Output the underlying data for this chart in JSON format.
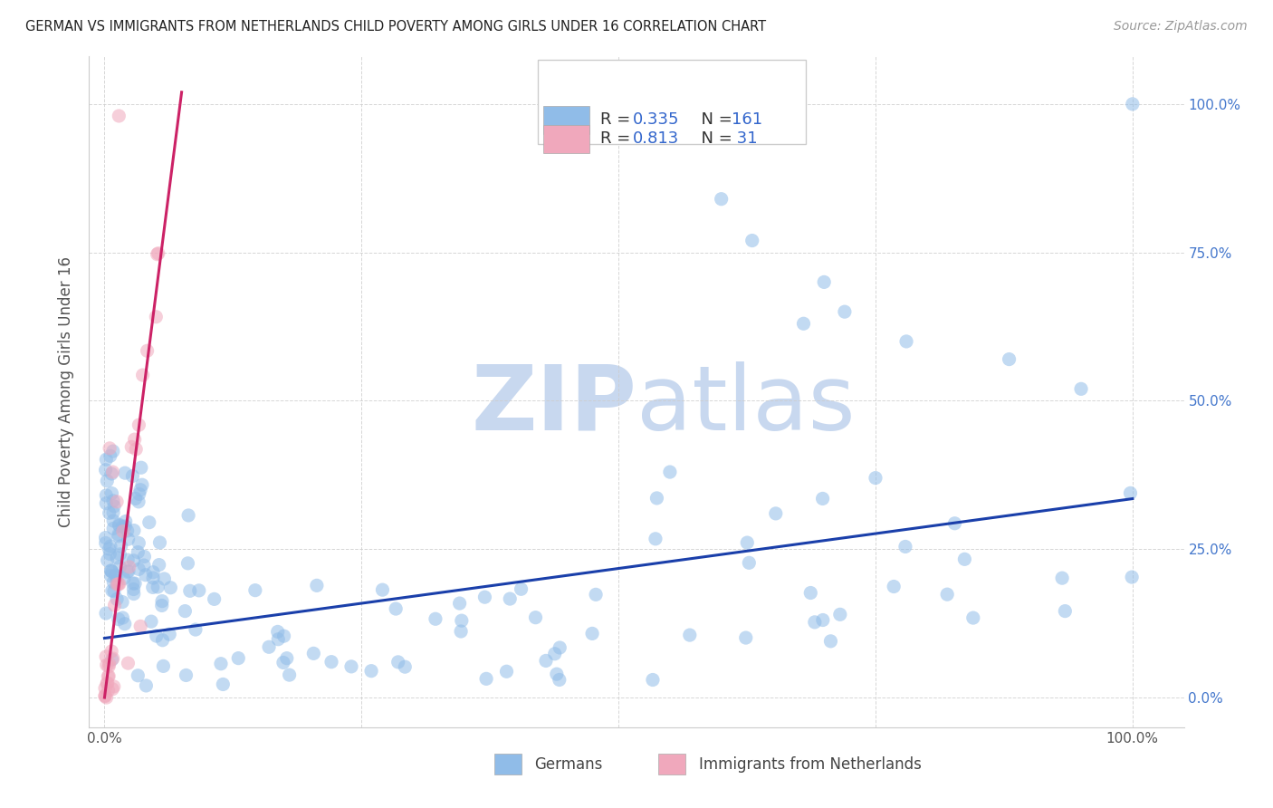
{
  "title": "GERMAN VS IMMIGRANTS FROM NETHERLANDS CHILD POVERTY AMONG GIRLS UNDER 16 CORRELATION CHART",
  "source": "Source: ZipAtlas.com",
  "ylabel": "Child Poverty Among Girls Under 16",
  "watermark_zip": "ZIP",
  "watermark_atlas": "atlas",
  "legend_blue_R": "0.335",
  "legend_blue_N": "161",
  "legend_pink_R": "0.813",
  "legend_pink_N": " 31",
  "label_blue": "Germans",
  "label_pink": "Immigrants from Netherlands",
  "blue_line_x": [
    0.0,
    1.0
  ],
  "blue_line_y": [
    0.1,
    0.335
  ],
  "pink_line_x": [
    0.0,
    0.075
  ],
  "pink_line_y": [
    0.0,
    1.02
  ],
  "scatter_size": 120,
  "scatter_alpha": 0.55,
  "line_color_blue": "#1a3faa",
  "line_color_pink": "#cc2266",
  "dot_color_blue": "#90bce8",
  "dot_color_pink": "#f0a8bc",
  "bg_color": "#ffffff",
  "grid_color": "#cccccc",
  "title_color": "#222222",
  "right_axis_color": "#4477cc",
  "watermark_color_zip": "#c8d8ef",
  "watermark_color_atlas": "#c8d8ef",
  "xlim": [
    -0.015,
    1.05
  ],
  "ylim": [
    -0.05,
    1.08
  ]
}
